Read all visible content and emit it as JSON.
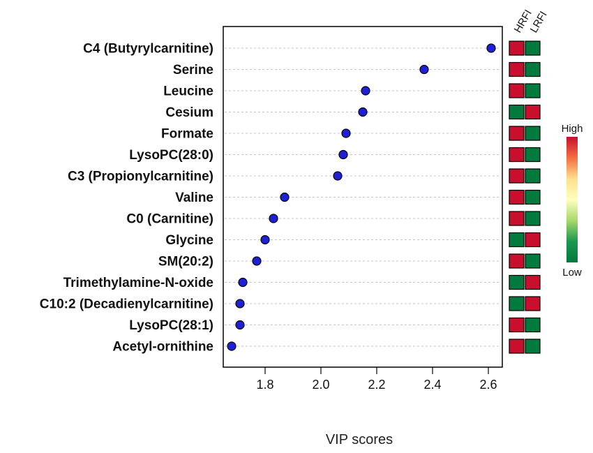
{
  "chart_data": {
    "type": "scatter",
    "xlabel": "VIP scores",
    "xlim": [
      1.65,
      2.65
    ],
    "xticks": [
      1.8,
      2.0,
      2.2,
      2.4,
      2.6
    ],
    "grid": "horizontal-dotted",
    "point_color": "#1f1fd6",
    "features": [
      {
        "name": "C4 (Butyrylcarnitine)",
        "vip": 2.61
      },
      {
        "name": "Serine",
        "vip": 2.37
      },
      {
        "name": "Leucine",
        "vip": 2.16
      },
      {
        "name": "Cesium",
        "vip": 2.15
      },
      {
        "name": "Formate",
        "vip": 2.09
      },
      {
        "name": "LysoPC(28:0)",
        "vip": 2.08
      },
      {
        "name": "C3 (Propionylcarnitine)",
        "vip": 2.06
      },
      {
        "name": "Valine",
        "vip": 1.87
      },
      {
        "name": "C0 (Carnitine)",
        "vip": 1.83
      },
      {
        "name": "Glycine",
        "vip": 1.8
      },
      {
        "name": "SM(20:2)",
        "vip": 1.77
      },
      {
        "name": "Trimethylamine-N-oxide",
        "vip": 1.72
      },
      {
        "name": "C10:2 (Decadienylcarnitine)",
        "vip": 1.71
      },
      {
        "name": "LysoPC(28:1)",
        "vip": 1.71
      },
      {
        "name": "Acetyl-ornithine",
        "vip": 1.68
      }
    ],
    "heatmap": {
      "columns": [
        "HRFI",
        "LRFI"
      ],
      "levels": [
        [
          "high",
          "low"
        ],
        [
          "high",
          "low"
        ],
        [
          "high",
          "low"
        ],
        [
          "low",
          "high"
        ],
        [
          "high",
          "low"
        ],
        [
          "high",
          "low"
        ],
        [
          "high",
          "low"
        ],
        [
          "high",
          "low"
        ],
        [
          "high",
          "low"
        ],
        [
          "low",
          "high"
        ],
        [
          "high",
          "low"
        ],
        [
          "low",
          "high"
        ],
        [
          "low",
          "high"
        ],
        [
          "high",
          "low"
        ],
        [
          "high",
          "low"
        ]
      ],
      "high_color": "#c8102e",
      "low_color": "#007a3d"
    },
    "legend": {
      "high_label": "High",
      "low_label": "Low",
      "placement": "right",
      "gradient": [
        "#c8102e",
        "#f46d43",
        "#fee08b",
        "#ffffbf",
        "#a6d96a",
        "#1a9850",
        "#007a3d"
      ]
    }
  }
}
